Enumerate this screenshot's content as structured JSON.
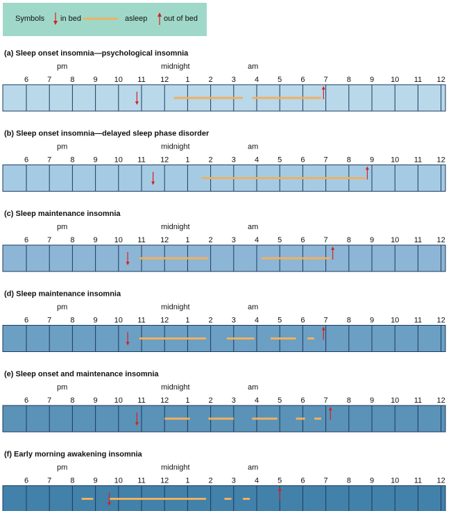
{
  "legend": {
    "title": "Symbols",
    "in_bed": "in bed",
    "asleep": "asleep",
    "out_of_bed": "out of bed"
  },
  "axis": {
    "period_labels": [
      "pm",
      "midnight",
      "am"
    ],
    "ticks": [
      {
        "value": 18,
        "label": "6"
      },
      {
        "value": 19,
        "label": "7"
      },
      {
        "value": 20,
        "label": "8"
      },
      {
        "value": 21,
        "label": "9"
      },
      {
        "value": 22,
        "label": "10"
      },
      {
        "value": 23,
        "label": "11"
      },
      {
        "value": 24,
        "label": "12"
      },
      {
        "value": 25,
        "label": "1"
      },
      {
        "value": 26,
        "label": "2"
      },
      {
        "value": 27,
        "label": "3"
      },
      {
        "value": 28,
        "label": "4"
      },
      {
        "value": 29,
        "label": "5"
      },
      {
        "value": 30,
        "label": "6"
      },
      {
        "value": 31,
        "label": "7"
      },
      {
        "value": 32,
        "label": "8"
      },
      {
        "value": 33,
        "label": "9"
      },
      {
        "value": 34,
        "label": "10"
      },
      {
        "value": 35,
        "label": "11"
      },
      {
        "value": 36,
        "label": "12"
      }
    ]
  },
  "panels": [
    {
      "title": "(a) Sleep onset insomnia—psychological insomnia",
      "color": "#b9d8ea",
      "in_bed": 22.8,
      "asleep": [
        [
          24.4,
          27.4
        ],
        [
          27.8,
          30.8
        ]
      ],
      "out_of_bed": 30.9
    },
    {
      "title": "(b) Sleep onset insomnia—delayed sleep phase disorder",
      "color": "#a5cbe4",
      "in_bed": 23.5,
      "asleep": [
        [
          25.6,
          32.7
        ]
      ],
      "out_of_bed": 32.8
    },
    {
      "title": "(c) Sleep maintenance insomnia",
      "color": "#8db6d6",
      "in_bed": 22.4,
      "asleep": [
        [
          22.9,
          25.9
        ],
        [
          28.2,
          31.2
        ]
      ],
      "out_of_bed": 31.3
    },
    {
      "title": "(d) Sleep maintenance insomnia",
      "color": "#6c9fc4",
      "in_bed": 22.4,
      "asleep": [
        [
          22.9,
          25.8
        ],
        [
          26.7,
          27.9
        ],
        [
          28.6,
          29.7
        ],
        [
          30.2,
          30.5
        ]
      ],
      "out_of_bed": 30.9
    },
    {
      "title": "(e) Sleep onset and maintenance insomnia",
      "color": "#5b92b8",
      "in_bed": 22.8,
      "asleep": [
        [
          24.0,
          25.1
        ],
        [
          25.9,
          27.0
        ],
        [
          27.8,
          28.9
        ],
        [
          29.7,
          30.1
        ],
        [
          30.5,
          30.8
        ]
      ],
      "out_of_bed": 31.2
    },
    {
      "title": "(f) Early morning awakening insomnia",
      "color": "#4281aa",
      "in_bed": 21.6,
      "asleep": [
        [
          20.4,
          20.9
        ],
        [
          21.6,
          25.8
        ],
        [
          26.6,
          26.9
        ],
        [
          27.4,
          27.7
        ]
      ],
      "out_of_bed": 29.0
    }
  ]
}
